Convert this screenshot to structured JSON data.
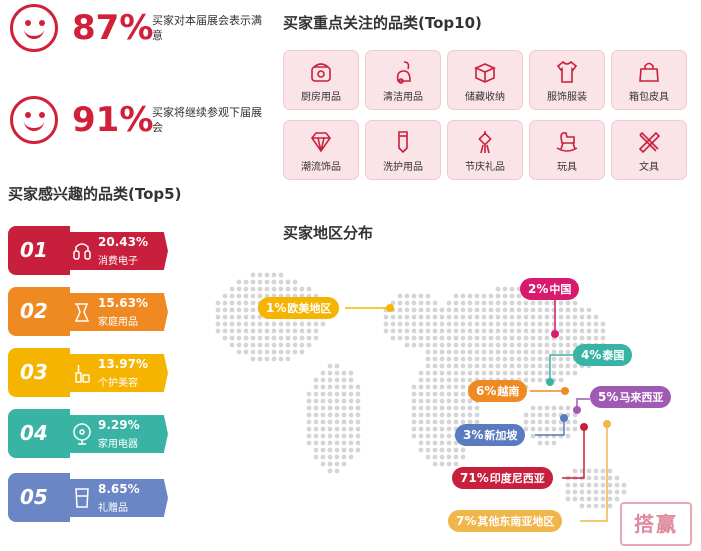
{
  "satisfaction": [
    {
      "pct": "87%",
      "desc": "买家对本届展会表示满意"
    },
    {
      "pct": "91%",
      "desc": "买家将继续参观下届展会"
    }
  ],
  "top10": {
    "title": "买家重点关注的品类(Top10)",
    "items": [
      {
        "label": "厨房用品",
        "icon": "rice-cooker-icon"
      },
      {
        "label": "清洁用品",
        "icon": "vacuum-icon"
      },
      {
        "label": "储藏收纳",
        "icon": "storage-box-icon"
      },
      {
        "label": "服饰服装",
        "icon": "shirt-icon"
      },
      {
        "label": "箱包皮具",
        "icon": "handbag-icon"
      },
      {
        "label": "潮流饰品",
        "icon": "diamond-icon"
      },
      {
        "label": "洗护用品",
        "icon": "tube-icon"
      },
      {
        "label": "节庆礼品",
        "icon": "chinese-knot-icon"
      },
      {
        "label": "玩具",
        "icon": "rocking-horse-icon"
      },
      {
        "label": "文具",
        "icon": "ruler-pencil-icon"
      }
    ]
  },
  "top5": {
    "title": "买家感兴趣的品类(Top5)",
    "items": [
      {
        "rank": "01",
        "pct": "20.43%",
        "label": "消费电子",
        "color": "#c8203c",
        "icon": "earbuds-icon"
      },
      {
        "rank": "02",
        "pct": "15.63%",
        "label": "家庭用品",
        "color": "#ef8a22",
        "icon": "coffee-pot-icon"
      },
      {
        "rank": "03",
        "pct": "13.97%",
        "label": "个护美容",
        "color": "#f5b400",
        "icon": "cosmetics-icon"
      },
      {
        "rank": "04",
        "pct": "9.29%",
        "label": "家用电器",
        "color": "#39b3a4",
        "icon": "fan-icon"
      },
      {
        "rank": "05",
        "pct": "8.65%",
        "label": "礼赠品",
        "color": "#6b86c5",
        "icon": "gift-cup-icon"
      }
    ]
  },
  "regions": {
    "title": "买家地区分布",
    "items": [
      {
        "pct": "1%",
        "label": "欧美地区",
        "color": "#f5b400"
      },
      {
        "pct": "2%",
        "label": "中国",
        "color": "#d81b6f"
      },
      {
        "pct": "4%",
        "label": "泰国",
        "color": "#39b3a4"
      },
      {
        "pct": "6%",
        "label": "越南",
        "color": "#ef8a22"
      },
      {
        "pct": "5%",
        "label": "马来西亚",
        "color": "#a05ab3"
      },
      {
        "pct": "3%",
        "label": "新加坡",
        "color": "#5a7bbf"
      },
      {
        "pct": "71%",
        "label": "印度尼西亚",
        "color": "#c8203c"
      },
      {
        "pct": "7%",
        "label": "其他东南亚地区",
        "color": "#f0b64a"
      }
    ]
  },
  "stamp": "搭赢"
}
